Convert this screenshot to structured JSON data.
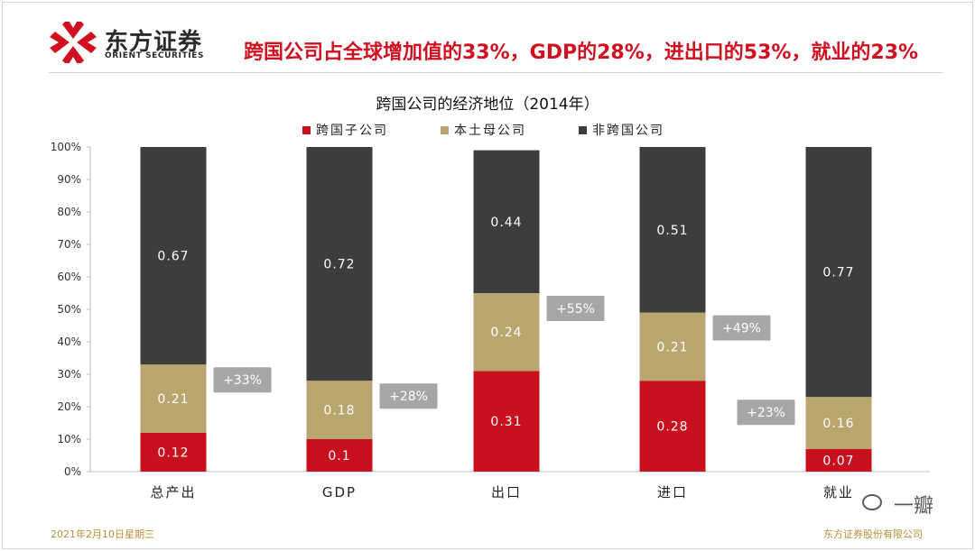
{
  "header": {
    "logo_name": "东方证券",
    "logo_sub": "ORIENT SECURITIES",
    "headline": "跨国公司占全球增加值的33%，GDP的28%，进出口的53%，就业的23%"
  },
  "footer": {
    "date": "2021年2月10日星期三",
    "company": "东方证券股份有限公司"
  },
  "watermark": {
    "text": "一瓣"
  },
  "colors": {
    "brand_red": "#d01020",
    "series_red": "#c8101e",
    "series_tan": "#b9a66e",
    "series_dark": "#3d3d3d",
    "callout_gray": "#a6a6a6"
  },
  "chart_data": {
    "type": "bar",
    "stacked": true,
    "title": "跨国公司的经济地位（2014年）",
    "categories": [
      "总产出",
      "GDP",
      "出口",
      "进口",
      "就业"
    ],
    "series": [
      {
        "name": "跨国子公司",
        "color": "#c8101e",
        "values": [
          0.12,
          0.1,
          0.31,
          0.28,
          0.07
        ],
        "labels": [
          "0.12",
          "0.1",
          "0.31",
          "0.28",
          "0.07"
        ]
      },
      {
        "name": "本土母公司",
        "color": "#b9a66e",
        "values": [
          0.21,
          0.18,
          0.24,
          0.21,
          0.16
        ],
        "labels": [
          "0.21",
          "0.18",
          "0.24",
          "0.21",
          "0.16"
        ]
      },
      {
        "name": "非跨国公司",
        "color": "#3d3d3d",
        "values": [
          0.67,
          0.72,
          0.44,
          0.51,
          0.77
        ],
        "labels": [
          "0.67",
          "0.72",
          "0.44",
          "0.51",
          "0.77"
        ]
      }
    ],
    "callouts": [
      "+33%",
      "+28%",
      "+55%",
      "+49%",
      "+23%"
    ],
    "callout_side": [
      "right",
      "right",
      "right",
      "right",
      "left"
    ],
    "y_ticks": [
      "0%",
      "10%",
      "20%",
      "30%",
      "40%",
      "50%",
      "60%",
      "70%",
      "80%",
      "90%",
      "100%"
    ],
    "ylim": [
      0,
      1
    ],
    "grid": false,
    "legend_position": "top"
  }
}
